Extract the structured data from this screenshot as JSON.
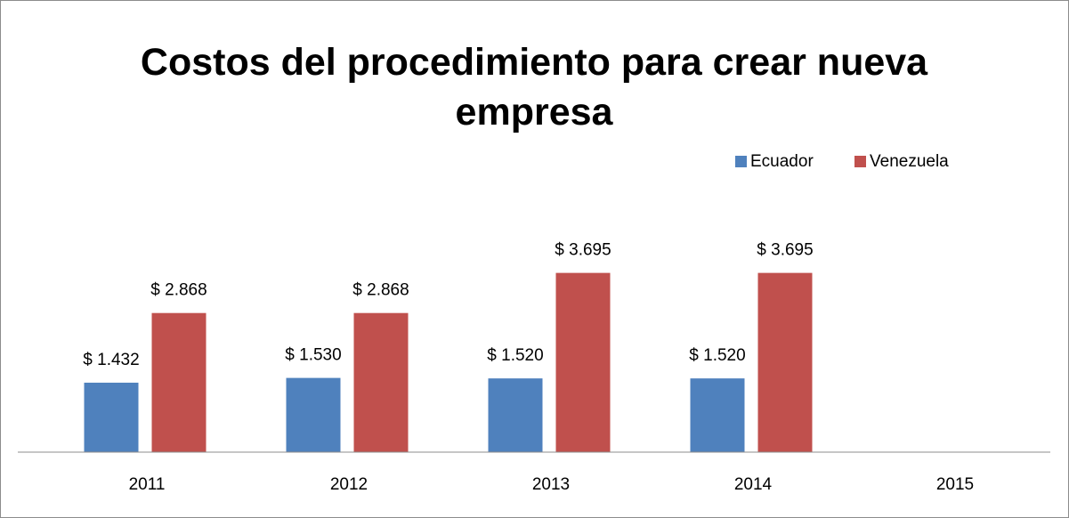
{
  "chart_data": {
    "type": "bar",
    "title": "Costos del procedimiento para crear nueva empresa",
    "categories": [
      "2011",
      "2012",
      "2013",
      "2014",
      "2015"
    ],
    "series": [
      {
        "name": "Ecuador",
        "color": "#4f81bd",
        "values": [
          1432,
          1530,
          1520,
          1520,
          null
        ],
        "value_labels": [
          "$ 1.432",
          "$ 1.530",
          "$ 1.520",
          "$ 1.520",
          null
        ]
      },
      {
        "name": "Venezuela",
        "color": "#c0504d",
        "values": [
          2868,
          2868,
          3695,
          3695,
          null
        ],
        "value_labels": [
          "$ 2.868",
          "$ 2.868",
          "$ 3.695",
          "$ 3.695",
          null
        ]
      }
    ],
    "ylim": [
      0,
      4000
    ],
    "legend": "top-right"
  }
}
